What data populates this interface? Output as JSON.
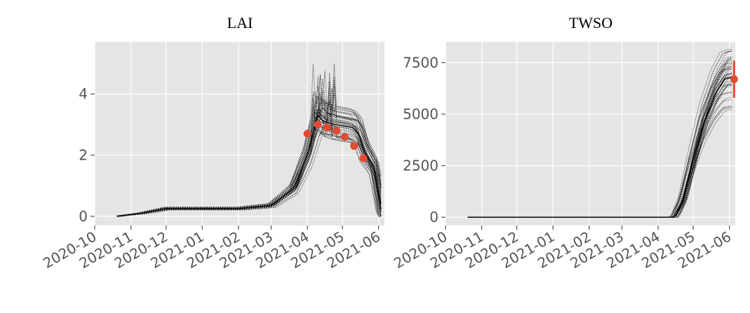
{
  "chart_data": [
    {
      "type": "line",
      "title": "LAI",
      "xlabel": "",
      "ylabel": "",
      "x_ticks": [
        "2020-10",
        "2020-11",
        "2020-12",
        "2021-01",
        "2021-02",
        "2021-03",
        "2021-04",
        "2021-05",
        "2021-06"
      ],
      "x_range": [
        "2020-10-01",
        "2021-06-06"
      ],
      "y_ticks": [
        "0",
        "2",
        "4"
      ],
      "y_range": [
        -0.3,
        5.7
      ],
      "grid": true,
      "ensemble": {
        "members": 40,
        "style": "dotted",
        "color": "#000000",
        "mean_profile": [
          [
            "2020-10-20",
            0.0
          ],
          [
            "2020-11-10",
            0.1
          ],
          [
            "2020-12-01",
            0.25
          ],
          [
            "2021-02-01",
            0.25
          ],
          [
            "2021-03-01",
            0.35
          ],
          [
            "2021-03-20",
            0.9
          ],
          [
            "2021-04-01",
            2.0
          ],
          [
            "2021-04-10",
            3.3
          ],
          [
            "2021-04-15",
            3.1
          ],
          [
            "2021-04-25",
            3.0
          ],
          [
            "2021-05-10",
            2.9
          ],
          [
            "2021-05-15",
            2.7
          ],
          [
            "2021-05-20",
            2.1
          ],
          [
            "2021-05-28",
            1.6
          ],
          [
            "2021-06-04",
            0.0
          ]
        ]
      },
      "observations": {
        "color": "#e24a33",
        "points": [
          [
            "2021-04-01",
            2.7
          ],
          [
            "2021-04-10",
            3.0
          ],
          [
            "2021-04-18",
            2.9
          ],
          [
            "2021-04-26",
            2.8
          ],
          [
            "2021-05-03",
            2.6
          ],
          [
            "2021-05-11",
            2.3
          ],
          [
            "2021-05-19",
            1.9
          ]
        ]
      }
    },
    {
      "type": "line",
      "title": "TWSO",
      "xlabel": "",
      "ylabel": "",
      "x_ticks": [
        "2020-10",
        "2020-11",
        "2020-12",
        "2021-01",
        "2021-02",
        "2021-03",
        "2021-04",
        "2021-05",
        "2021-06"
      ],
      "x_range": [
        "2020-10-01",
        "2021-06-06"
      ],
      "y_ticks": [
        "0",
        "2500",
        "5000",
        "7500"
      ],
      "y_range": [
        -400,
        8500
      ],
      "grid": true,
      "ensemble": {
        "members": 40,
        "style": "dotted",
        "color": "#000000",
        "mean_profile": [
          [
            "2020-10-20",
            0
          ],
          [
            "2021-04-15",
            0
          ],
          [
            "2021-04-22",
            800
          ],
          [
            "2021-05-01",
            2800
          ],
          [
            "2021-05-10",
            4600
          ],
          [
            "2021-05-20",
            6000
          ],
          [
            "2021-05-28",
            6700
          ],
          [
            "2021-06-04",
            6800
          ]
        ]
      },
      "observations": {
        "color": "#e24a33",
        "points": [
          [
            "2021-06-05",
            6700
          ]
        ],
        "error_bar": [
          5800,
          7600
        ]
      }
    }
  ]
}
